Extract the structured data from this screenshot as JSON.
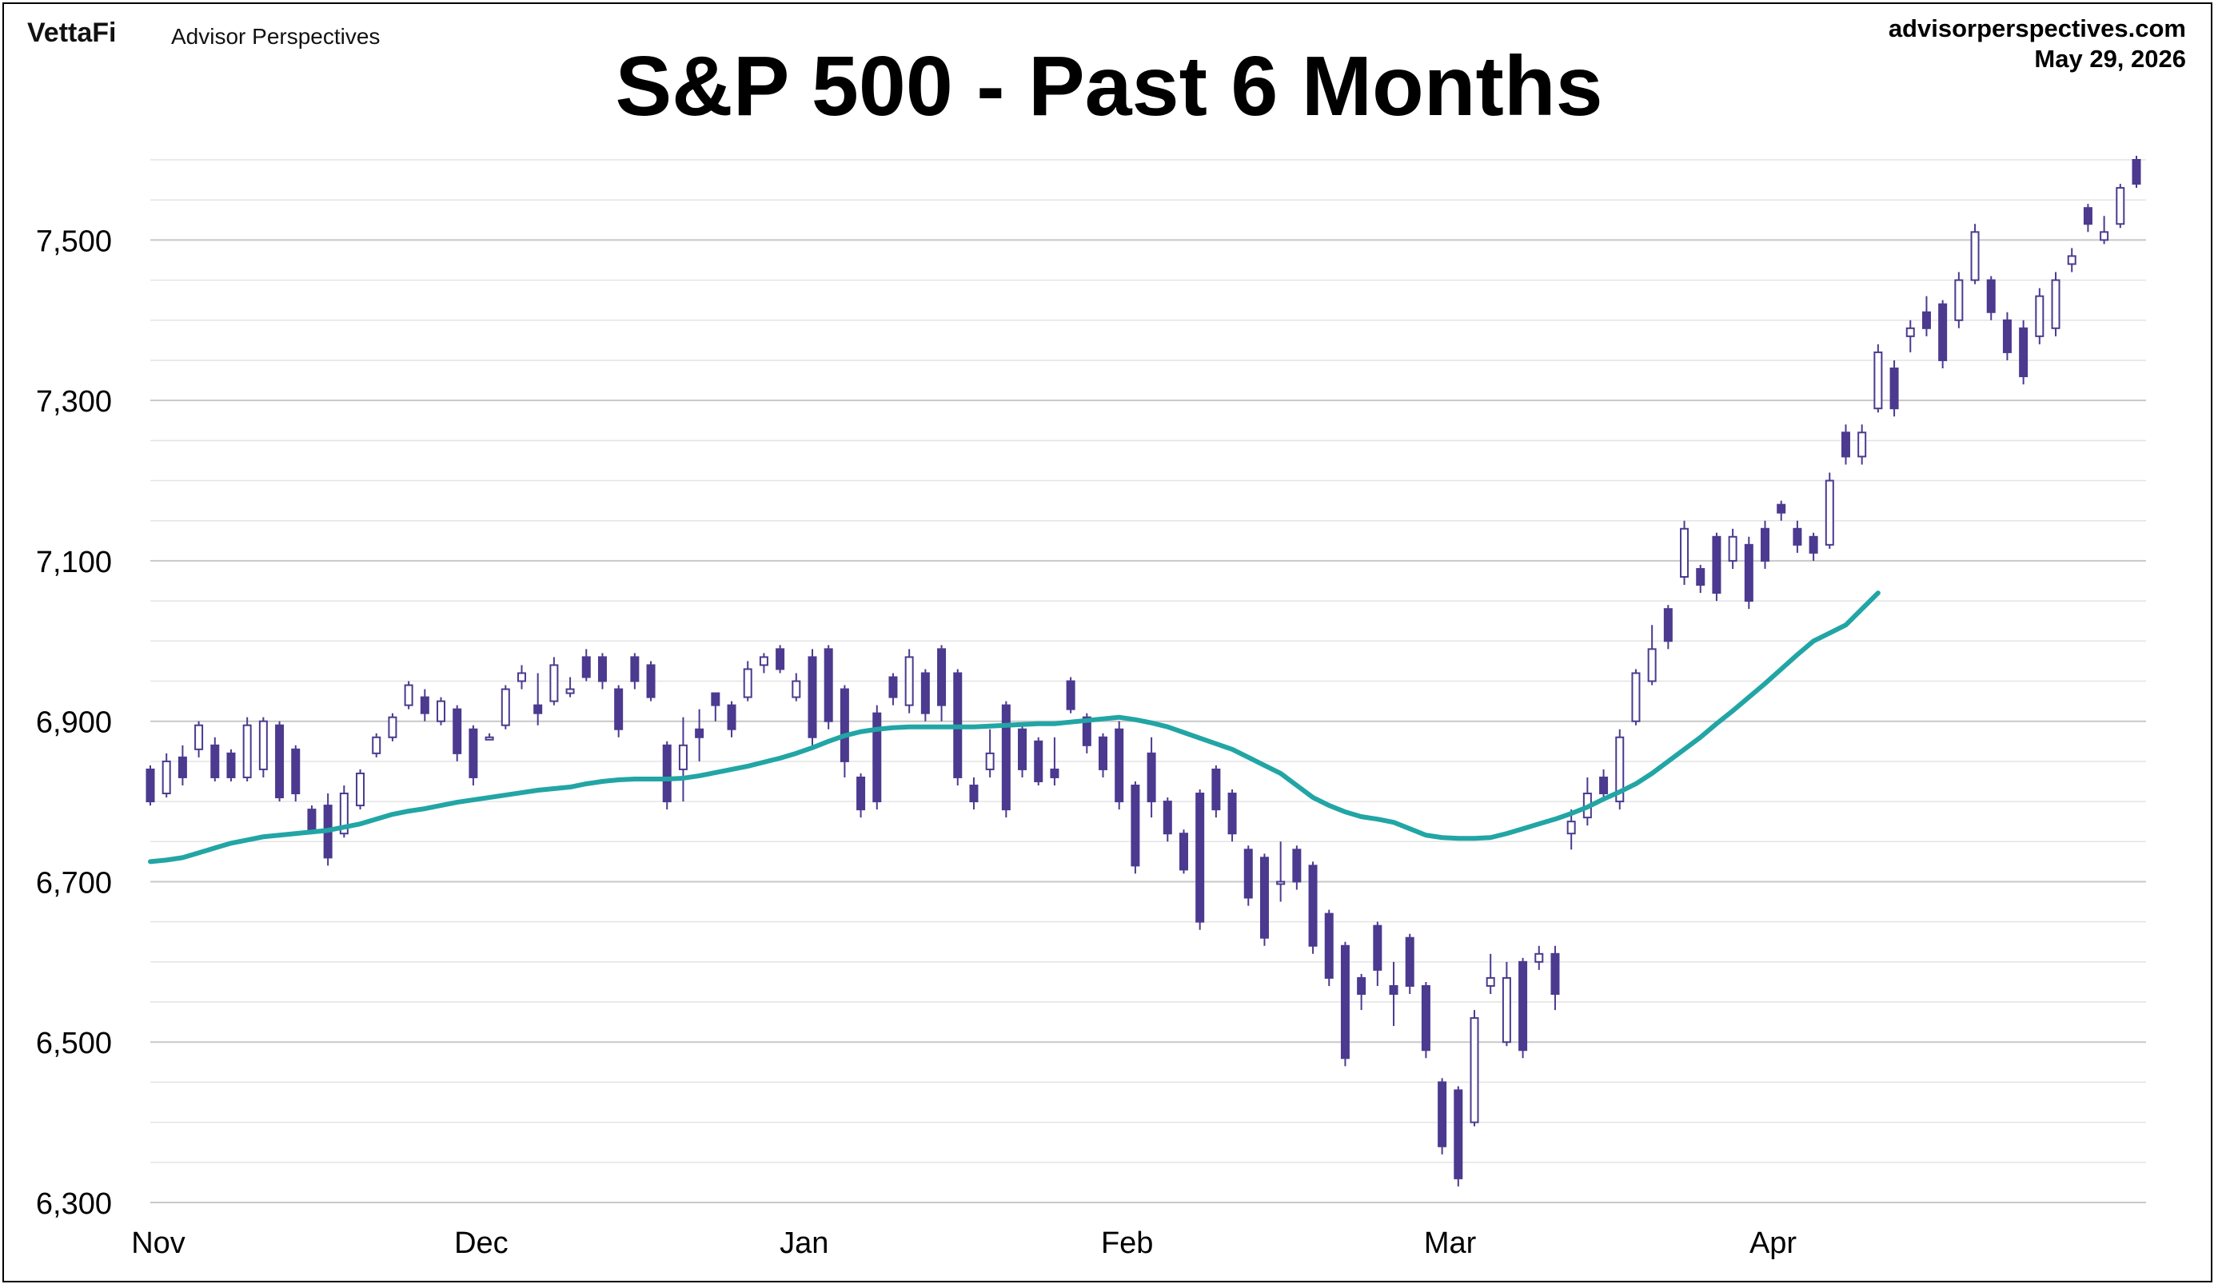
{
  "header": {
    "brand": "VettaFi",
    "brand_sub": "Advisor Perspectives",
    "site": "advisorperspectives.com",
    "date": "May 29, 2026"
  },
  "colors": {
    "candle": "#4b3a8f",
    "ma_line": "#22a5a5",
    "grid": "#c8c8c8",
    "minor_grid": "#e4e4e4"
  },
  "chart_data": {
    "type": "line",
    "title": "S&P 500 - Past 6 Months",
    "xlabel": "",
    "ylabel": "",
    "ylim": [
      6300,
      7600
    ],
    "y_ticks": [
      6300,
      6500,
      6700,
      6900,
      7100,
      7300,
      7500
    ],
    "y_tick_labels": [
      "6,300",
      "6,500",
      "6,700",
      "6,900",
      "7,100",
      "7,300",
      "7,500"
    ],
    "x_tick_labels": [
      "Nov",
      "Dec",
      "Jan",
      "Feb",
      "Mar",
      "Apr"
    ],
    "x_ticks_at_index": [
      0,
      20,
      40,
      60,
      80,
      100
    ],
    "grid": true,
    "legend": "none",
    "ohlc": [
      [
        6840,
        6845,
        6795,
        6800
      ],
      [
        6810,
        6860,
        6805,
        6850
      ],
      [
        6855,
        6870,
        6820,
        6830
      ],
      [
        6865,
        6900,
        6855,
        6895
      ],
      [
        6870,
        6880,
        6825,
        6830
      ],
      [
        6860,
        6865,
        6825,
        6830
      ],
      [
        6830,
        6905,
        6825,
        6895
      ],
      [
        6840,
        6905,
        6830,
        6900
      ],
      [
        6895,
        6900,
        6800,
        6805
      ],
      [
        6865,
        6870,
        6800,
        6810
      ],
      [
        6790,
        6795,
        6760,
        6765
      ],
      [
        6795,
        6810,
        6720,
        6730
      ],
      [
        6760,
        6820,
        6755,
        6810
      ],
      [
        6795,
        6840,
        6790,
        6835
      ],
      [
        6860,
        6885,
        6855,
        6880
      ],
      [
        6880,
        6910,
        6875,
        6905
      ],
      [
        6920,
        6950,
        6915,
        6945
      ],
      [
        6930,
        6940,
        6900,
        6910
      ],
      [
        6900,
        6930,
        6895,
        6925
      ],
      [
        6915,
        6920,
        6850,
        6860
      ],
      [
        6890,
        6895,
        6820,
        6830
      ],
      [
        6880,
        6885,
        6880,
        6880
      ],
      [
        6895,
        6945,
        6890,
        6940
      ],
      [
        6950,
        6970,
        6940,
        6960
      ],
      [
        6920,
        6960,
        6895,
        6910
      ],
      [
        6925,
        6980,
        6920,
        6970
      ],
      [
        6935,
        6955,
        6930,
        6940
      ],
      [
        6980,
        6990,
        6950,
        6955
      ],
      [
        6980,
        6985,
        6940,
        6950
      ],
      [
        6940,
        6945,
        6880,
        6890
      ],
      [
        6980,
        6985,
        6940,
        6950
      ],
      [
        6970,
        6975,
        6925,
        6930
      ],
      [
        6870,
        6875,
        6790,
        6800
      ],
      [
        6840,
        6905,
        6800,
        6870
      ],
      [
        6890,
        6915,
        6850,
        6880
      ],
      [
        6935,
        6935,
        6900,
        6920
      ],
      [
        6920,
        6925,
        6880,
        6890
      ],
      [
        6930,
        6975,
        6925,
        6965
      ],
      [
        6970,
        6985,
        6960,
        6980
      ],
      [
        6990,
        6995,
        6960,
        6965
      ],
      [
        6930,
        6960,
        6925,
        6950
      ],
      [
        6980,
        6990,
        6870,
        6880
      ],
      [
        6990,
        6995,
        6890,
        6900
      ],
      [
        6940,
        6945,
        6830,
        6850
      ],
      [
        6830,
        6835,
        6780,
        6790
      ],
      [
        6910,
        6920,
        6790,
        6800
      ],
      [
        6955,
        6960,
        6920,
        6930
      ],
      [
        6920,
        6990,
        6910,
        6980
      ],
      [
        6960,
        6965,
        6900,
        6910
      ],
      [
        6990,
        6995,
        6900,
        6920
      ],
      [
        6960,
        6965,
        6820,
        6830
      ],
      [
        6820,
        6830,
        6790,
        6800
      ],
      [
        6840,
        6890,
        6830,
        6860
      ],
      [
        6920,
        6925,
        6780,
        6790
      ],
      [
        6890,
        6895,
        6830,
        6840
      ],
      [
        6875,
        6880,
        6820,
        6825
      ],
      [
        6840,
        6880,
        6820,
        6830
      ],
      [
        6950,
        6955,
        6910,
        6915
      ],
      [
        6905,
        6910,
        6860,
        6870
      ],
      [
        6880,
        6885,
        6830,
        6840
      ],
      [
        6890,
        6900,
        6790,
        6800
      ],
      [
        6820,
        6825,
        6710,
        6720
      ],
      [
        6860,
        6880,
        6780,
        6800
      ],
      [
        6800,
        6805,
        6750,
        6760
      ],
      [
        6760,
        6765,
        6710,
        6715
      ],
      [
        6810,
        6815,
        6640,
        6650
      ],
      [
        6840,
        6845,
        6780,
        6790
      ],
      [
        6810,
        6815,
        6750,
        6760
      ],
      [
        6740,
        6745,
        6670,
        6680
      ],
      [
        6730,
        6735,
        6620,
        6630
      ],
      [
        6700,
        6750,
        6675,
        6700
      ],
      [
        6740,
        6745,
        6690,
        6700
      ],
      [
        6720,
        6725,
        6610,
        6620
      ],
      [
        6660,
        6665,
        6570,
        6580
      ],
      [
        6620,
        6625,
        6470,
        6480
      ],
      [
        6580,
        6585,
        6540,
        6560
      ],
      [
        6645,
        6650,
        6570,
        6590
      ],
      [
        6570,
        6600,
        6520,
        6560
      ],
      [
        6630,
        6635,
        6560,
        6570
      ],
      [
        6570,
        6575,
        6480,
        6490
      ],
      [
        6450,
        6455,
        6360,
        6370
      ],
      [
        6440,
        6445,
        6320,
        6330
      ],
      [
        6400,
        6540,
        6395,
        6530
      ],
      [
        6570,
        6610,
        6560,
        6580
      ],
      [
        6500,
        6600,
        6495,
        6580
      ],
      [
        6600,
        6605,
        6480,
        6490
      ],
      [
        6600,
        6620,
        6590,
        6610
      ],
      [
        6610,
        6620,
        6540,
        6560
      ],
      [
        6760,
        6790,
        6740,
        6775
      ],
      [
        6780,
        6830,
        6770,
        6810
      ],
      [
        6830,
        6840,
        6800,
        6810
      ],
      [
        6800,
        6890,
        6790,
        6880
      ],
      [
        6900,
        6965,
        6895,
        6960
      ],
      [
        6950,
        7020,
        6945,
        6990
      ],
      [
        7040,
        7045,
        6990,
        7000
      ],
      [
        7080,
        7150,
        7070,
        7140
      ],
      [
        7090,
        7095,
        7060,
        7070
      ],
      [
        7130,
        7135,
        7050,
        7060
      ],
      [
        7100,
        7140,
        7090,
        7130
      ],
      [
        7120,
        7130,
        7040,
        7050
      ],
      [
        7140,
        7150,
        7090,
        7100
      ],
      [
        7170,
        7175,
        7150,
        7160
      ],
      [
        7140,
        7150,
        7110,
        7120
      ],
      [
        7130,
        7135,
        7100,
        7110
      ],
      [
        7120,
        7210,
        7115,
        7200
      ],
      [
        7260,
        7270,
        7220,
        7230
      ],
      [
        7230,
        7270,
        7220,
        7260
      ],
      [
        7290,
        7370,
        7285,
        7360
      ],
      [
        7340,
        7350,
        7280,
        7290
      ],
      [
        7380,
        7400,
        7360,
        7390
      ],
      [
        7410,
        7430,
        7380,
        7390
      ],
      [
        7420,
        7425,
        7340,
        7350
      ],
      [
        7400,
        7460,
        7390,
        7450
      ],
      [
        7450,
        7520,
        7445,
        7510
      ],
      [
        7450,
        7455,
        7400,
        7410
      ],
      [
        7400,
        7410,
        7350,
        7360
      ],
      [
        7390,
        7400,
        7320,
        7330
      ],
      [
        7380,
        7440,
        7370,
        7430
      ],
      [
        7390,
        7460,
        7380,
        7450
      ],
      [
        7470,
        7490,
        7460,
        7480
      ],
      [
        7540,
        7545,
        7510,
        7520
      ],
      [
        7500,
        7530,
        7495,
        7510
      ],
      [
        7520,
        7570,
        7515,
        7565
      ],
      [
        7600,
        7605,
        7565,
        7570
      ]
    ],
    "ma": [
      6725,
      6727,
      6730,
      6736,
      6742,
      6748,
      6752,
      6756,
      6758,
      6760,
      6762,
      6764,
      6768,
      6772,
      6778,
      6784,
      6788,
      6791,
      6795,
      6799,
      6802,
      6805,
      6808,
      6811,
      6814,
      6816,
      6818,
      6822,
      6825,
      6827,
      6828,
      6828,
      6828,
      6829,
      6832,
      6836,
      6840,
      6844,
      6849,
      6854,
      6860,
      6867,
      6875,
      6882,
      6887,
      6890,
      6892,
      6893,
      6893,
      6893,
      6893,
      6893,
      6894,
      6895,
      6896,
      6897,
      6897,
      6899,
      6901,
      6903,
      6905,
      6902,
      6898,
      6893,
      6886,
      6879,
      6872,
      6865,
      6855,
      6845,
      6835,
      6820,
      6805,
      6795,
      6787,
      6781,
      6778,
      6774,
      6766,
      6758,
      6755,
      6754,
      6754,
      6755,
      6760,
      6766,
      6772,
      6778,
      6785,
      6793,
      6803,
      6812,
      6822,
      6835,
      6850,
      6865,
      6880,
      6897,
      6913,
      6930,
      6947,
      6965,
      6983,
      7000,
      7010,
      7020,
      7040,
      7060
    ]
  }
}
